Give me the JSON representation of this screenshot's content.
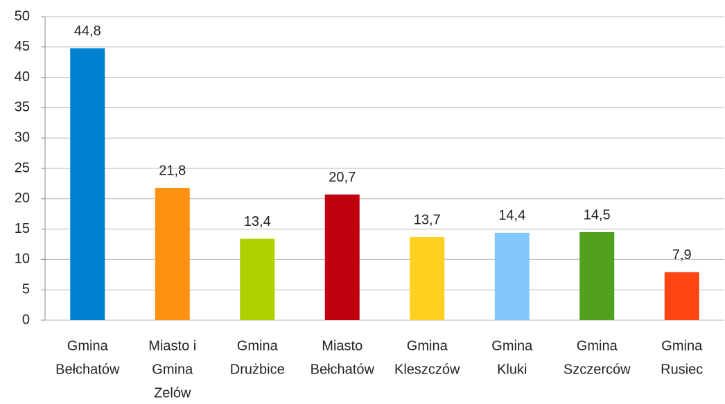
{
  "chart_data": {
    "type": "bar",
    "categories": [
      [
        "Gmina",
        "Bełchatów"
      ],
      [
        "Miasto i",
        "Gmina",
        "Zelów"
      ],
      [
        "Gmina",
        "Drużbice"
      ],
      [
        "Miasto",
        "Bełchatów"
      ],
      [
        "Gmina",
        "Kleszczów"
      ],
      [
        "Gmina",
        "Kluki"
      ],
      [
        "Gmina",
        "Szczerców"
      ],
      [
        "Gmina",
        "Rusiec"
      ]
    ],
    "values": [
      44.8,
      21.8,
      13.4,
      20.7,
      13.7,
      14.4,
      14.5,
      7.9
    ],
    "value_labels": [
      "44,8",
      "21,8",
      "13,4",
      "20,7",
      "13,7",
      "14,4",
      "14,5",
      "7,9"
    ],
    "colors": [
      "#0080d0",
      "#ff9012",
      "#b0d000",
      "#c00010",
      "#ffd020",
      "#82c8ff",
      "#52a020",
      "#ff4512"
    ],
    "ylim": [
      0,
      50
    ],
    "yticks": [
      0,
      5,
      10,
      15,
      20,
      25,
      30,
      35,
      40,
      45,
      50
    ],
    "grid": true
  }
}
